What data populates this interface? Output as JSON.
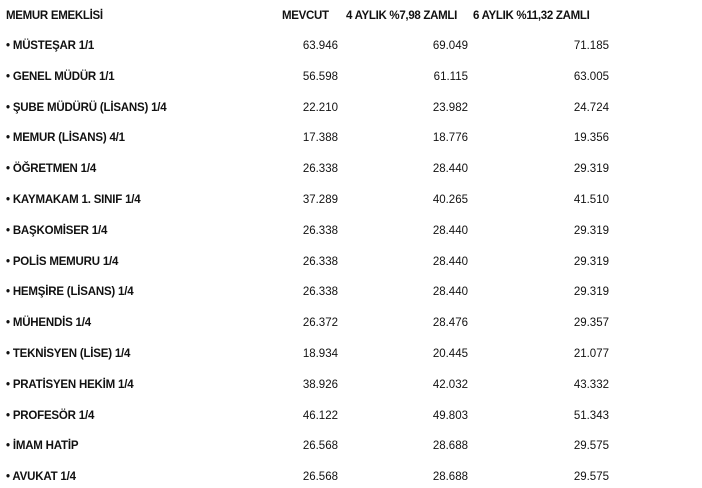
{
  "header": {
    "title": "MEMUR EMEKLİSİ",
    "col1": "MEVCUT",
    "col2": "4 AYLIK %7,98 ZAMLI",
    "col3": "6 AYLIK %11,32 ZAMLI"
  },
  "rows": [
    {
      "label": "• MÜSTEŞAR 1/1",
      "mevcut": "63.946",
      "aylik4": "69.049",
      "aylik6": "71.185"
    },
    {
      "label": "• GENEL MÜDÜR 1/1",
      "mevcut": "56.598",
      "aylik4": "61.115",
      "aylik6": "63.005"
    },
    {
      "label": "• ŞUBE MÜDÜRÜ (LİSANS) 1/4",
      "mevcut": "22.210",
      "aylik4": "23.982",
      "aylik6": "24.724"
    },
    {
      "label": "• MEMUR (LİSANS) 4/1",
      "mevcut": "17.388",
      "aylik4": "18.776",
      "aylik6": "19.356"
    },
    {
      "label": "• ÖĞRETMEN 1/4",
      "mevcut": "26.338",
      "aylik4": "28.440",
      "aylik6": "29.319"
    },
    {
      "label": "• KAYMAKAM 1. SINIF 1/4",
      "mevcut": "37.289",
      "aylik4": "40.265",
      "aylik6": "41.510"
    },
    {
      "label": "• BAŞKOMİSER 1/4",
      "mevcut": "26.338",
      "aylik4": "28.440",
      "aylik6": "29.319"
    },
    {
      "label": "• POLİS MEMURU 1/4",
      "mevcut": "26.338",
      "aylik4": "28.440",
      "aylik6": "29.319"
    },
    {
      "label": "• HEMŞİRE (LİSANS) 1/4",
      "mevcut": "26.338",
      "aylik4": "28.440",
      "aylik6": "29.319"
    },
    {
      "label": "• MÜHENDİS 1/4",
      "mevcut": "26.372",
      "aylik4": "28.476",
      "aylik6": "29.357"
    },
    {
      "label": "• TEKNİSYEN (LİSE) 1/4",
      "mevcut": "18.934",
      "aylik4": "20.445",
      "aylik6": "21.077"
    },
    {
      "label": "• PRATİSYEN HEKİM 1/4",
      "mevcut": "38.926",
      "aylik4": "42.032",
      "aylik6": "43.332"
    },
    {
      "label": "• PROFESÖR 1/4",
      "mevcut": "46.122",
      "aylik4": "49.803",
      "aylik6": "51.343"
    },
    {
      "label": "• İMAM HATİP",
      "mevcut": "26.568",
      "aylik4": "28.688",
      "aylik6": "29.575"
    },
    {
      "label": "• AVUKAT 1/4",
      "mevcut": "26.568",
      "aylik4": "28.688",
      "aylik6": "29.575"
    }
  ]
}
